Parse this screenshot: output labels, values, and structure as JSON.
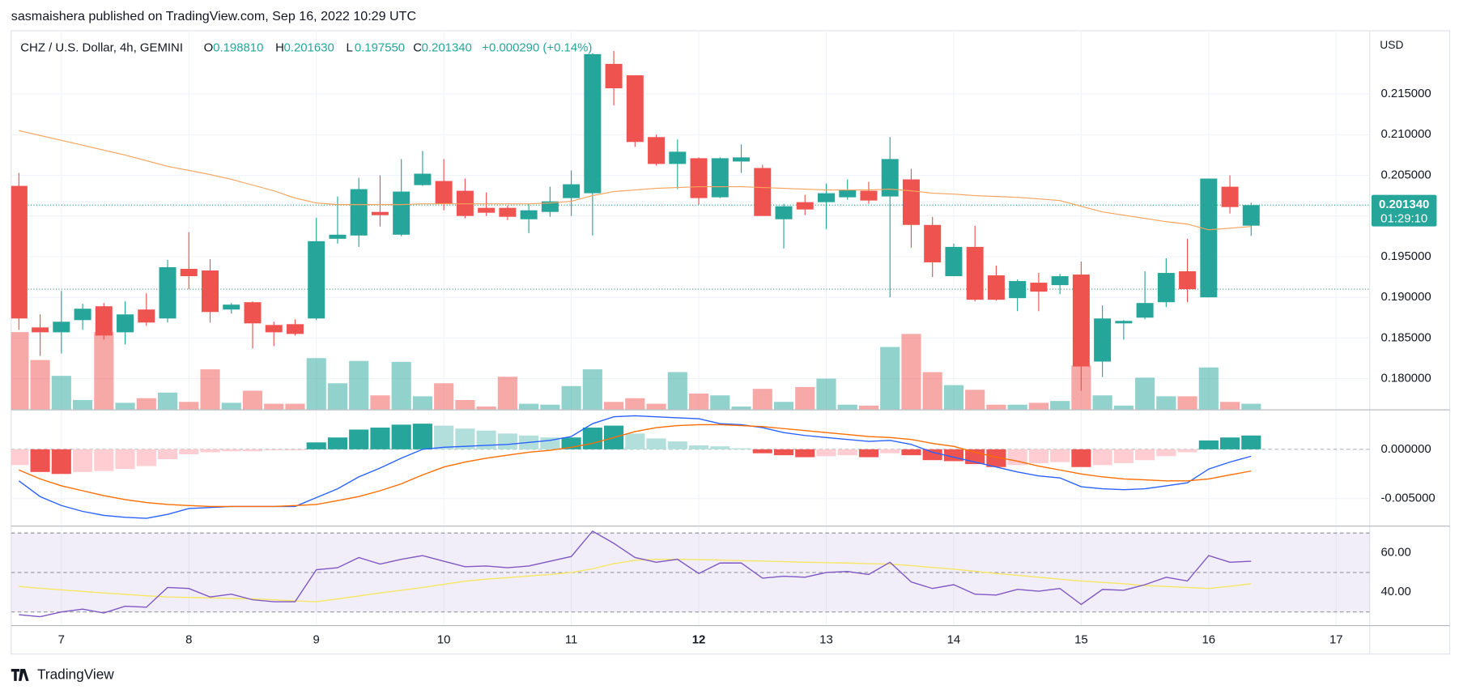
{
  "header": {
    "publisher": "sasmaishera published on TradingView.com, Sep 16, 2022 10:29 UTC",
    "symbol": "CHZ / U.S. Dollar, 4h, GEMINI",
    "o_label": "O",
    "open": "0.198810",
    "h_label": "H",
    "high": "0.201630",
    "l_label": "L",
    "low": "0.197550",
    "c_label": "C",
    "close": "0.201340",
    "change": "+0.000290 (+0.14%)"
  },
  "footer": {
    "brand": "TradingView"
  },
  "chart_data": [
    {
      "type": "candlestick",
      "currency": "USD",
      "x": [
        6.6667,
        6.8333,
        7,
        7.1667,
        7.3333,
        7.5,
        7.6667,
        7.8333,
        8,
        8.1667,
        8.3333,
        8.5,
        8.6667,
        8.8333,
        9,
        9.1667,
        9.3333,
        9.5,
        9.6667,
        9.8333,
        10,
        10.1667,
        10.3333,
        10.5,
        10.6667,
        10.8333,
        11,
        11.1667,
        11.3333,
        11.5,
        11.6667,
        11.8333,
        12,
        12.1667,
        12.3333,
        12.5,
        12.6667,
        12.8333,
        13,
        13.1667,
        13.3333,
        13.5,
        13.6667,
        13.8333,
        14,
        14.1667,
        14.3333,
        14.5,
        14.6667,
        14.8333,
        15,
        15.1667,
        15.3333,
        15.5,
        15.6667,
        15.8333,
        16,
        16.1667,
        16.3333
      ],
      "open": [
        0.2037,
        0.1863,
        0.1857,
        0.1872,
        0.1889,
        0.1857,
        0.1885,
        0.1874,
        0.1935,
        0.1933,
        0.1885,
        0.1894,
        0.1866,
        0.1867,
        0.1874,
        0.1972,
        0.1976,
        0.2005,
        0.1977,
        0.2038,
        0.2043,
        0.2031,
        0.201,
        0.201,
        0.1996,
        0.2005,
        0.2022,
        0.2028,
        0.2187,
        0.2173,
        0.2097,
        0.2064,
        0.2071,
        0.2023,
        0.2067,
        0.2059,
        0.1996,
        0.2017,
        0.2017,
        0.2023,
        0.2031,
        0.2024,
        0.2045,
        0.1989,
        0.1926,
        0.1962,
        0.1927,
        0.1899,
        0.1918,
        0.1915,
        0.1928,
        0.1821,
        0.1868,
        0.1875,
        0.1894,
        0.1932,
        0.19,
        0.2036,
        0.19881
      ],
      "high": [
        0.2053,
        0.1879,
        0.1908,
        0.1892,
        0.1893,
        0.1895,
        0.1905,
        0.1946,
        0.198,
        0.1947,
        0.1893,
        0.1895,
        0.187,
        0.1873,
        0.1998,
        0.2024,
        0.2047,
        0.205,
        0.207,
        0.208,
        0.207,
        0.2046,
        0.2029,
        0.2013,
        0.2015,
        0.2036,
        0.2056,
        0.22,
        0.2203,
        0.2173,
        0.21,
        0.2094,
        0.2072,
        0.2072,
        0.2088,
        0.2063,
        0.2015,
        0.2026,
        0.204,
        0.2045,
        0.2042,
        0.2097,
        0.2058,
        0.1999,
        0.1966,
        0.1988,
        0.1939,
        0.1922,
        0.193,
        0.1929,
        0.1944,
        0.189,
        0.1872,
        0.1932,
        0.1948,
        0.1972,
        0.2046,
        0.205,
        0.20163
      ],
      "low": [
        0.186,
        0.1828,
        0.1831,
        0.186,
        0.1848,
        0.1842,
        0.1865,
        0.1869,
        0.191,
        0.1869,
        0.188,
        0.1837,
        0.184,
        0.1853,
        0.1872,
        0.1966,
        0.1962,
        0.1987,
        0.1975,
        0.2037,
        0.2007,
        0.1997,
        0.2,
        0.1995,
        0.1979,
        0.1999,
        0.2,
        0.1976,
        0.2136,
        0.2085,
        0.2062,
        0.2033,
        0.2014,
        0.2022,
        0.2053,
        0.2,
        0.196,
        0.2001,
        0.1984,
        0.202,
        0.2015,
        0.19,
        0.1961,
        0.1925,
        0.1926,
        0.1895,
        0.1896,
        0.1883,
        0.1883,
        0.1904,
        0.1785,
        0.1802,
        0.1848,
        0.1873,
        0.1888,
        0.1894,
        0.19,
        0.2003,
        0.19755
      ],
      "close": [
        0.1874,
        0.1857,
        0.187,
        0.1886,
        0.1853,
        0.1879,
        0.1869,
        0.1937,
        0.1926,
        0.1882,
        0.1891,
        0.1868,
        0.1857,
        0.1855,
        0.1969,
        0.1977,
        0.2033,
        0.2001,
        0.203,
        0.2052,
        0.2015,
        0.2,
        0.2004,
        0.1999,
        0.2007,
        0.2018,
        0.2039,
        0.2199,
        0.2157,
        0.2091,
        0.2064,
        0.2079,
        0.2022,
        0.2071,
        0.2072,
        0.2,
        0.2012,
        0.2008,
        0.2028,
        0.2032,
        0.2019,
        0.207,
        0.1989,
        0.1943,
        0.1962,
        0.1897,
        0.1897,
        0.192,
        0.1907,
        0.1926,
        0.1815,
        0.1874,
        0.1871,
        0.1893,
        0.193,
        0.191,
        0.2046,
        0.2011,
        0.20134
      ],
      "volume": [
        83,
        53,
        36,
        10,
        83,
        7,
        12,
        18,
        8,
        43,
        7,
        20,
        6,
        6,
        55,
        28,
        52,
        15,
        51,
        14,
        28,
        10,
        3,
        35,
        6,
        5,
        25,
        43,
        8,
        12,
        6,
        40,
        17,
        15,
        3,
        22,
        8,
        24,
        33,
        5,
        4,
        67,
        81,
        40,
        26,
        21,
        5,
        5,
        7,
        9,
        47,
        15,
        4,
        34,
        14,
        14,
        45,
        8,
        6
      ],
      "ma": [
        0.2105,
        0.2099,
        0.2093,
        0.2087,
        0.2081,
        0.2075,
        0.2068,
        0.2061,
        0.2056,
        0.2051,
        0.2045,
        0.2038,
        0.2031,
        0.2022,
        0.2016,
        0.2014,
        0.2014,
        0.2014,
        0.2014,
        0.2015,
        0.2015,
        0.2015,
        0.2015,
        0.2015,
        0.2015,
        0.2016,
        0.2018,
        0.2025,
        0.203,
        0.2032,
        0.2034,
        0.2035,
        0.2036,
        0.2036,
        0.2036,
        0.2035,
        0.2034,
        0.2033,
        0.2032,
        0.2032,
        0.2032,
        0.2033,
        0.2031,
        0.2028,
        0.2027,
        0.2025,
        0.2024,
        0.2023,
        0.2021,
        0.2019,
        0.2012,
        0.2005,
        0.2001,
        0.1997,
        0.1993,
        0.199,
        0.1983,
        0.1985,
        0.1987
      ],
      "last_price": {
        "value": 0.20134,
        "label": "0.201340"
      },
      "countdown": "01:29:10",
      "reference_line": 0.191,
      "up_color": "#26a69a",
      "down_color": "#ef5350",
      "ma_color": "#f7a35c",
      "xlim": [
        6.606,
        17.263
      ],
      "xticks": [
        7,
        8,
        9,
        10,
        11,
        12,
        13,
        14,
        15,
        16,
        17
      ],
      "xtick_bold": 12,
      "ylim": [
        0.17623,
        0.22278
      ],
      "yticks": [
        {
          "value": 0.18,
          "label": "0.180000"
        },
        {
          "value": 0.185,
          "label": "0.185000"
        },
        {
          "value": 0.19,
          "label": "0.190000"
        },
        {
          "value": 0.195,
          "label": "0.195000"
        },
        {
          "value": 0.2,
          "label": "0.200000"
        },
        {
          "value": 0.205,
          "label": "0.205000"
        },
        {
          "value": 0.21,
          "label": "0.210000"
        },
        {
          "value": 0.215,
          "label": "0.215000"
        }
      ],
      "grid": true
    },
    {
      "type": "macd",
      "histogram": [
        -0.0016,
        -0.0023,
        -0.0025,
        -0.0023,
        -0.0022,
        -0.002,
        -0.0017,
        -0.001,
        -0.0005,
        -0.0003,
        -0.0002,
        -0.0002,
        -0.0001,
        -0.0001,
        0.0007,
        0.0012,
        0.002,
        0.0022,
        0.0025,
        0.0026,
        0.0024,
        0.0021,
        0.0019,
        0.0016,
        0.0014,
        0.0012,
        0.0012,
        0.0022,
        0.0024,
        0.0016,
        0.0011,
        0.0008,
        0.0004,
        0.0003,
        0.0001,
        -0.0004,
        -0.0006,
        -0.0008,
        -0.0007,
        -0.0006,
        -0.0008,
        -0.0004,
        -0.0006,
        -0.0011,
        -0.0012,
        -0.0015,
        -0.0018,
        -0.0016,
        -0.0014,
        -0.0013,
        -0.0018,
        -0.0016,
        -0.0014,
        -0.0011,
        -0.0007,
        -0.0003,
        0.0009,
        0.0012,
        0.0014
      ],
      "macd": [
        -0.0032,
        -0.0048,
        -0.0057,
        -0.0063,
        -0.0067,
        -0.0069,
        -0.007,
        -0.0066,
        -0.006,
        -0.0059,
        -0.0058,
        -0.0058,
        -0.0058,
        -0.0058,
        -0.0049,
        -0.004,
        -0.0028,
        -0.0019,
        -0.0009,
        0.0,
        0.0002,
        0.0003,
        0.0004,
        0.0005,
        0.0007,
        0.0009,
        0.0013,
        0.0026,
        0.0033,
        0.0034,
        0.0033,
        0.0032,
        0.0031,
        0.0026,
        0.0025,
        0.0022,
        0.0017,
        0.0014,
        0.0012,
        0.001,
        0.0008,
        0.0009,
        0.0005,
        -0.0003,
        -0.0008,
        -0.0013,
        -0.0018,
        -0.0023,
        -0.0027,
        -0.0029,
        -0.0038,
        -0.004,
        -0.0041,
        -0.004,
        -0.0037,
        -0.0034,
        -0.002,
        -0.0013,
        -0.0007
      ],
      "signal": [
        -0.0021,
        -0.003,
        -0.0037,
        -0.0042,
        -0.0047,
        -0.0051,
        -0.0054,
        -0.0056,
        -0.0057,
        -0.0058,
        -0.0058,
        -0.0058,
        -0.0058,
        -0.0057,
        -0.0056,
        -0.0052,
        -0.0048,
        -0.0042,
        -0.0035,
        -0.0026,
        -0.0018,
        -0.0013,
        -0.0009,
        -0.0006,
        -0.0003,
        -0.0001,
        0.0002,
        0.0006,
        0.0012,
        0.0018,
        0.0022,
        0.0024,
        0.0025,
        0.0025,
        0.0024,
        0.0023,
        0.0021,
        0.0019,
        0.0017,
        0.0015,
        0.0013,
        0.0012,
        0.001,
        0.0006,
        0.0003,
        -0.0003,
        -0.0008,
        -0.0012,
        -0.0017,
        -0.0021,
        -0.0025,
        -0.0028,
        -0.003,
        -0.0031,
        -0.0032,
        -0.0032,
        -0.003,
        -0.0026,
        -0.0022
      ],
      "hist_colors": [
        "#26a69a",
        "#b2dfdb",
        "#ef5350",
        "#ffcdd2"
      ],
      "macd_color": "#2962ff",
      "signal_color": "#ff6d00",
      "ylim": [
        -0.00774,
        0.00396
      ],
      "yticks": [
        {
          "value": 0,
          "label": "0.000000"
        },
        {
          "value": -0.005,
          "label": "-0.005000"
        }
      ]
    },
    {
      "type": "rsi",
      "rsi": [
        28.6,
        27.6,
        30.0,
        31.4,
        29.5,
        32.9,
        32.4,
        42.4,
        41.9,
        37.6,
        39.0,
        36.2,
        35.2,
        35.2,
        51.4,
        52.4,
        57.6,
        54.3,
        56.7,
        58.6,
        55.7,
        52.9,
        53.3,
        52.4,
        53.3,
        55.7,
        58.1,
        71.0,
        64.8,
        57.6,
        55.2,
        56.7,
        49.5,
        54.8,
        54.8,
        47.1,
        48.1,
        47.6,
        50.0,
        50.5,
        49.0,
        55.2,
        45.2,
        41.9,
        43.8,
        39.0,
        38.6,
        41.4,
        40.5,
        41.9,
        33.8,
        41.4,
        41.0,
        43.8,
        47.6,
        45.7,
        58.6,
        55.2,
        55.7
      ],
      "rsi_ma": [
        42.9,
        42.0,
        41.2,
        40.4,
        39.6,
        38.9,
        38.2,
        37.6,
        37.3,
        37.1,
        36.9,
        36.6,
        36.2,
        35.6,
        35.2,
        36.6,
        38.1,
        39.6,
        41.0,
        42.4,
        44.0,
        45.6,
        46.6,
        47.4,
        48.2,
        49.0,
        50.0,
        51.9,
        54.5,
        56.2,
        56.7,
        56.7,
        56.5,
        56.3,
        56.0,
        55.8,
        55.5,
        55.2,
        55.0,
        54.8,
        54.5,
        54.3,
        53.5,
        52.6,
        51.7,
        50.6,
        49.5,
        48.6,
        47.6,
        46.6,
        45.7,
        45.0,
        44.3,
        43.4,
        42.9,
        42.4,
        41.9,
        43.0,
        44.3
      ],
      "rsi_color": "#7e57c2",
      "ma_color": "#f5e663",
      "upper_band": 70,
      "middle_band": 50,
      "lower_band": 30,
      "ylim": [
        23.3,
        73.3
      ],
      "yticks": [
        {
          "value": 40,
          "label": "40.00"
        },
        {
          "value": 60,
          "label": "60.00"
        }
      ]
    }
  ]
}
